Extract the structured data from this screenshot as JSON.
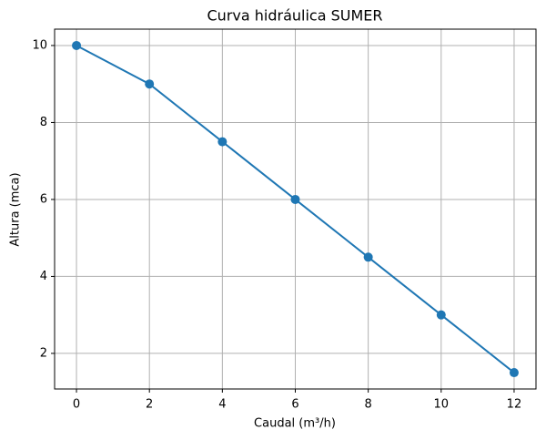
{
  "chart_data": {
    "type": "line",
    "title": "Curva hidráulica SUMER",
    "x_label": "Caudal (m³/h)",
    "y_label": "Altura (mca)",
    "x": [
      0,
      2,
      4,
      6,
      8,
      10,
      12
    ],
    "values": [
      10,
      9,
      7.5,
      6,
      4.5,
      3,
      1.5
    ],
    "color": "#1f77b4",
    "markers": true,
    "xlim": [
      -0.6,
      12.6
    ],
    "xticks": [
      0,
      2,
      4,
      6,
      8,
      10,
      12
    ],
    "ylim": [
      1.075,
      10.425
    ],
    "yticks": [
      2,
      4,
      6,
      8,
      10
    ],
    "grid": true
  }
}
